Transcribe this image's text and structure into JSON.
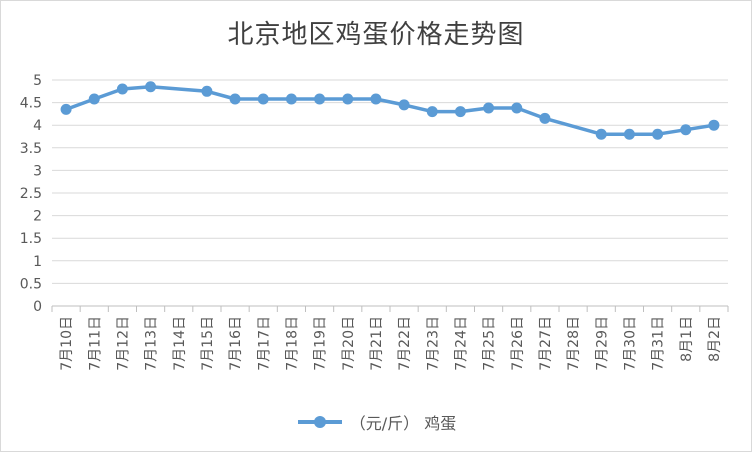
{
  "chart_data": {
    "type": "line",
    "title": "北京地区鸡蛋价格走势图",
    "categories": [
      "7月10日",
      "7月11日",
      "7月12日",
      "7月13日",
      "7月14日",
      "7月15日",
      "7月16日",
      "7月17日",
      "7月18日",
      "7月19日",
      "7月20日",
      "7月21日",
      "7月22日",
      "7月23日",
      "7月24日",
      "7月25日",
      "7月26日",
      "7月27日",
      "7月28日",
      "7月29日",
      "7月30日",
      "7月31日",
      "8月1日",
      "8月2日"
    ],
    "series": [
      {
        "name": "（元/斤） 鸡蛋",
        "values": [
          4.35,
          4.58,
          4.8,
          4.85,
          null,
          4.75,
          4.58,
          4.58,
          4.58,
          4.58,
          4.58,
          4.58,
          4.45,
          4.3,
          4.3,
          4.38,
          4.38,
          4.15,
          null,
          3.8,
          3.8,
          3.8,
          3.9,
          4.0
        ],
        "color": "#5b9bd5"
      }
    ],
    "y_ticks": [
      "0",
      "0.5",
      "1",
      "1.5",
      "2",
      "2.5",
      "3",
      "3.5",
      "4",
      "4.5",
      "5"
    ],
    "ylim": [
      0,
      5
    ],
    "grid": true,
    "legend_position": "bottom"
  }
}
